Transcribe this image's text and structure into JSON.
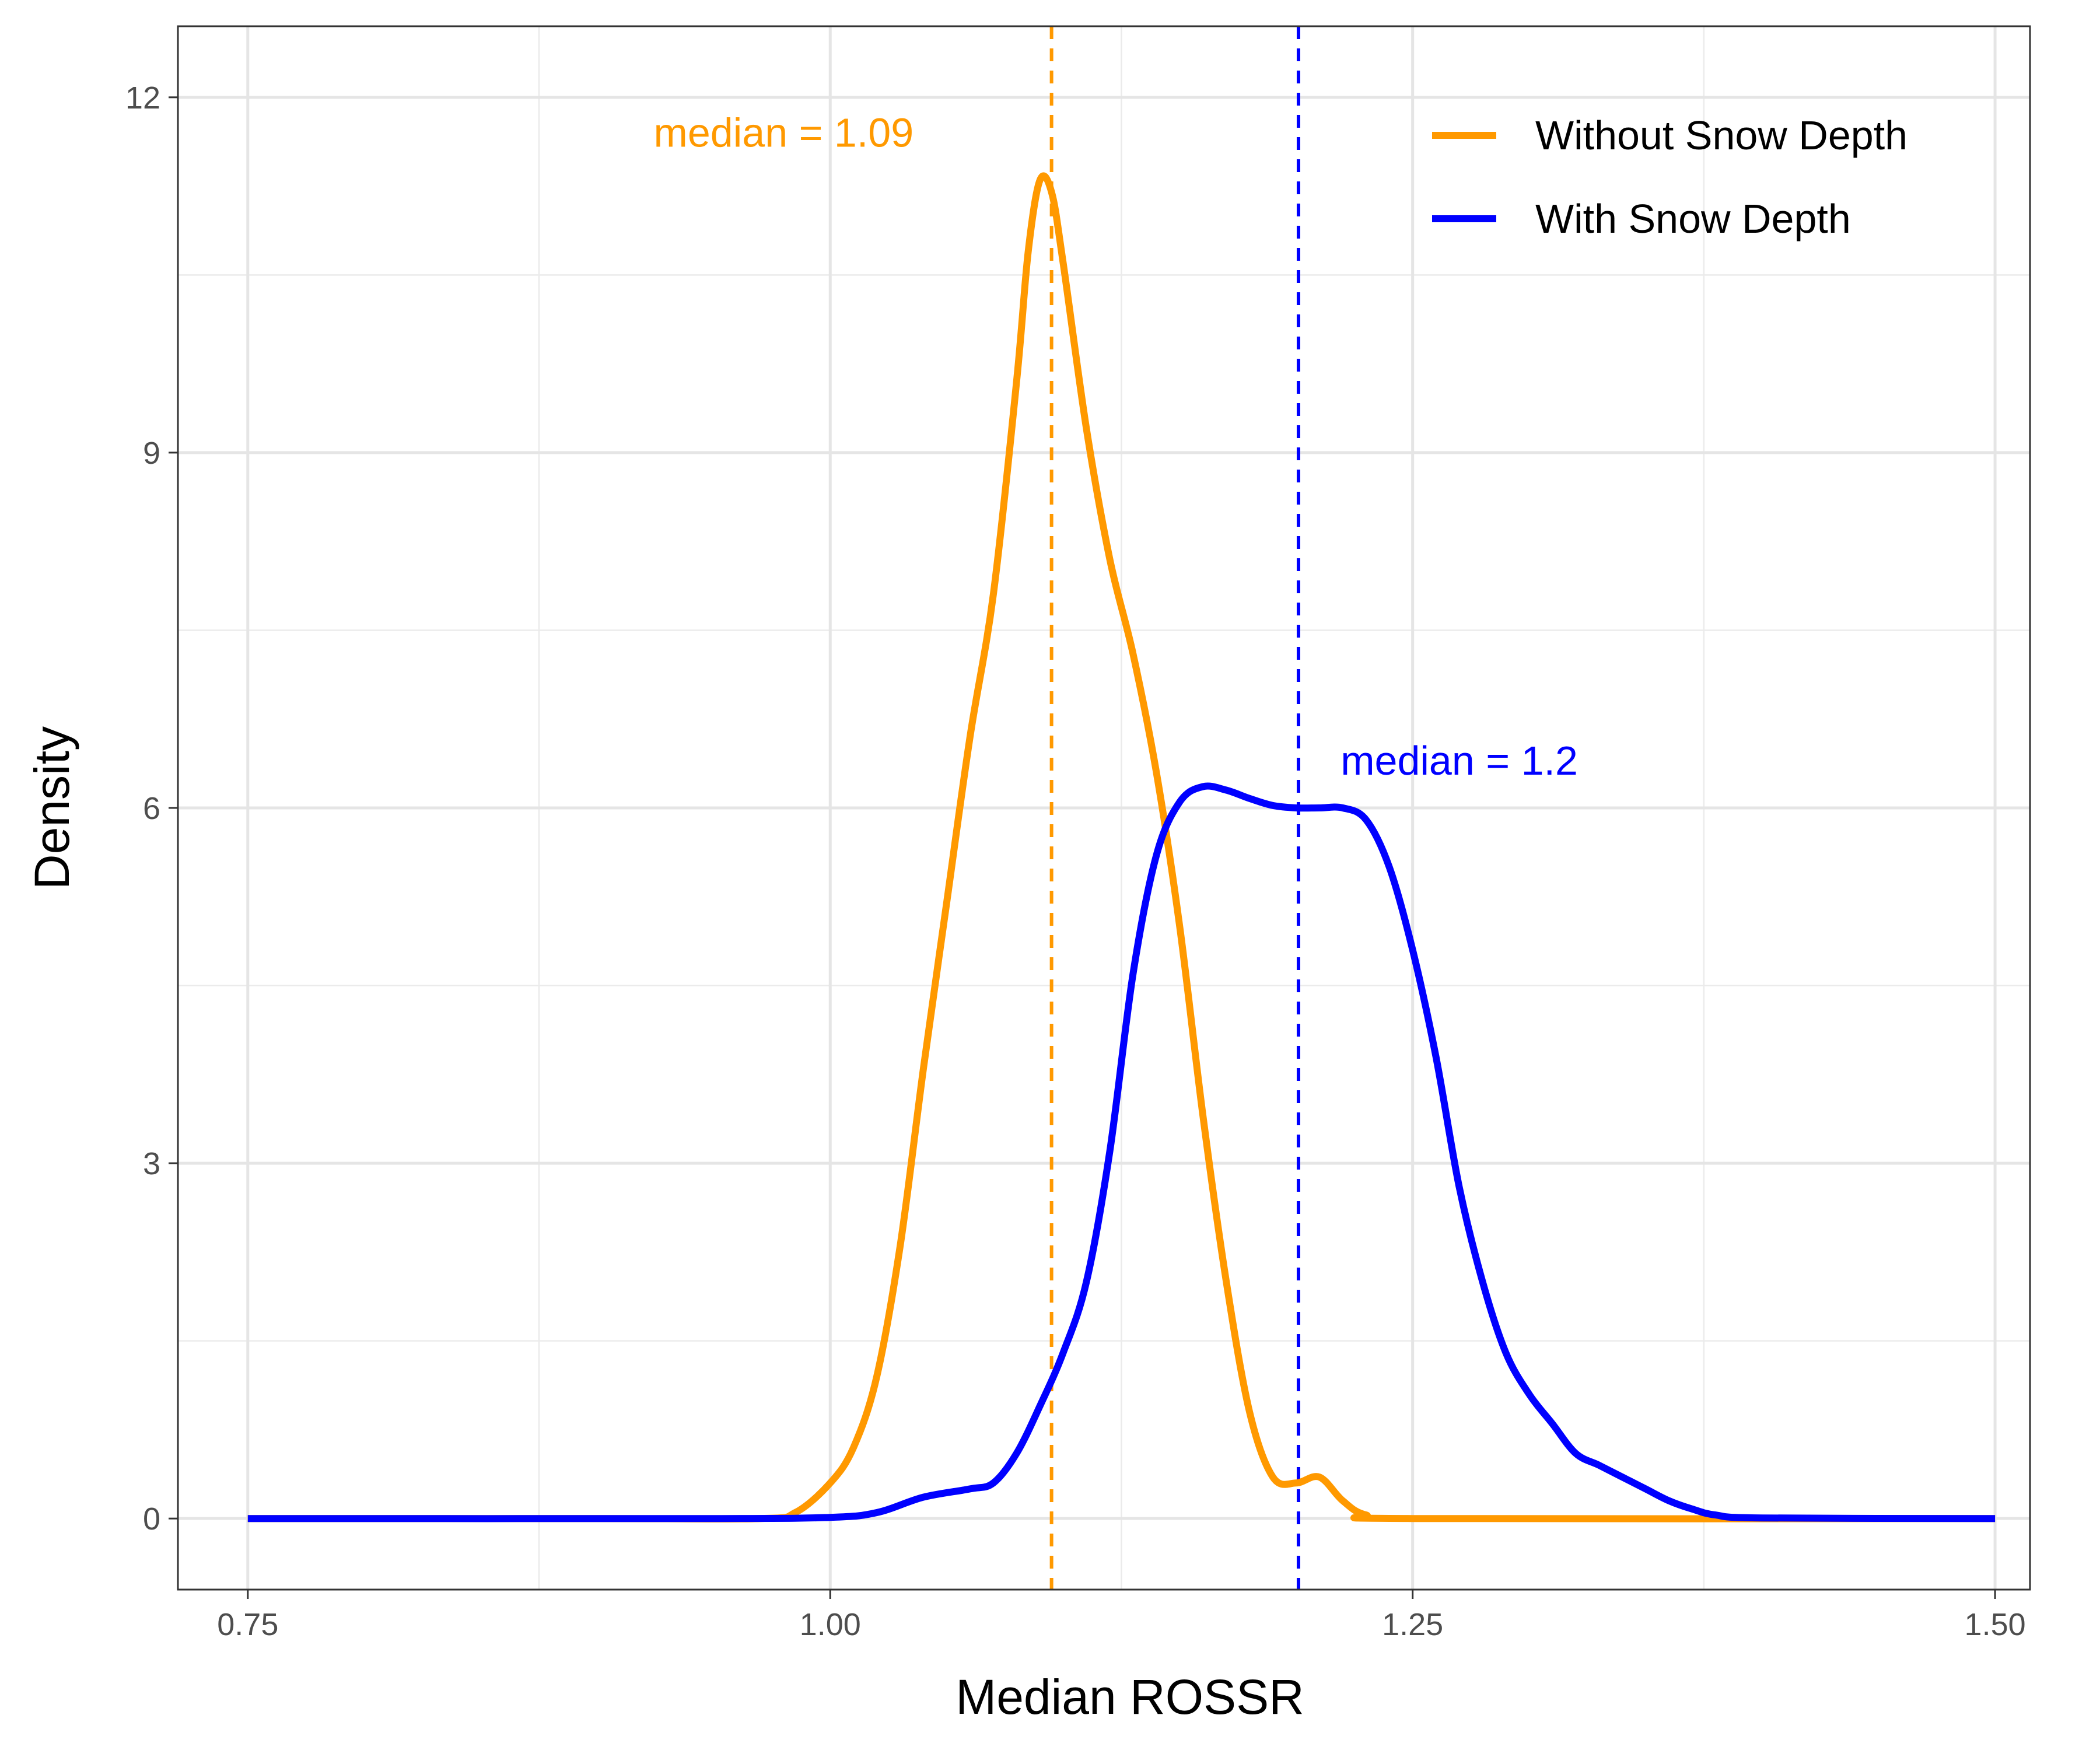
{
  "chart_data": {
    "type": "line",
    "title": "",
    "xlabel": "Median ROSSR",
    "ylabel": "Density",
    "xlim": [
      0.72,
      1.515
    ],
    "ylim": [
      -0.6,
      12.6
    ],
    "x_ticks": [
      0.75,
      1.0,
      1.25,
      1.5
    ],
    "x_tick_labels": [
      "0.75",
      "1.00",
      "1.25",
      "1.50"
    ],
    "y_ticks": [
      0,
      3,
      6,
      9,
      12
    ],
    "y_tick_labels": [
      "0",
      "3",
      "6",
      "9",
      "12"
    ],
    "grid": true,
    "legend_position": "top-right",
    "series": [
      {
        "name": "Without Snow Depth",
        "color": "#FF9900",
        "points": [
          [
            0.75,
            0
          ],
          [
            0.9,
            0
          ],
          [
            0.97,
            0
          ],
          [
            0.985,
            0.05
          ],
          [
            1.0,
            0.3
          ],
          [
            1.01,
            0.6
          ],
          [
            1.02,
            1.2
          ],
          [
            1.03,
            2.3
          ],
          [
            1.04,
            3.8
          ],
          [
            1.05,
            5.2
          ],
          [
            1.06,
            6.6
          ],
          [
            1.07,
            7.8
          ],
          [
            1.08,
            9.6
          ],
          [
            1.085,
            10.7
          ],
          [
            1.09,
            11.3
          ],
          [
            1.095,
            11.2
          ],
          [
            1.1,
            10.6
          ],
          [
            1.11,
            9.2
          ],
          [
            1.12,
            8.1
          ],
          [
            1.13,
            7.3
          ],
          [
            1.14,
            6.3
          ],
          [
            1.15,
            5.0
          ],
          [
            1.16,
            3.4
          ],
          [
            1.17,
            2.0
          ],
          [
            1.18,
            0.9
          ],
          [
            1.19,
            0.35
          ],
          [
            1.2,
            0.3
          ],
          [
            1.21,
            0.35
          ],
          [
            1.22,
            0.15
          ],
          [
            1.23,
            0.03
          ],
          [
            1.25,
            0
          ],
          [
            1.5,
            0
          ]
        ]
      },
      {
        "name": "With Snow Depth",
        "color": "#0000FF",
        "points": [
          [
            0.75,
            0
          ],
          [
            0.95,
            0
          ],
          [
            1.0,
            0.01
          ],
          [
            1.02,
            0.05
          ],
          [
            1.04,
            0.18
          ],
          [
            1.06,
            0.25
          ],
          [
            1.07,
            0.3
          ],
          [
            1.08,
            0.55
          ],
          [
            1.09,
            0.95
          ],
          [
            1.1,
            1.4
          ],
          [
            1.11,
            2.0
          ],
          [
            1.12,
            3.1
          ],
          [
            1.13,
            4.6
          ],
          [
            1.14,
            5.6
          ],
          [
            1.15,
            6.05
          ],
          [
            1.16,
            6.18
          ],
          [
            1.17,
            6.15
          ],
          [
            1.18,
            6.08
          ],
          [
            1.19,
            6.02
          ],
          [
            1.2,
            6.0
          ],
          [
            1.21,
            6.0
          ],
          [
            1.22,
            6.0
          ],
          [
            1.23,
            5.9
          ],
          [
            1.24,
            5.5
          ],
          [
            1.25,
            4.8
          ],
          [
            1.26,
            3.9
          ],
          [
            1.27,
            2.8
          ],
          [
            1.28,
            2.0
          ],
          [
            1.29,
            1.4
          ],
          [
            1.3,
            1.05
          ],
          [
            1.31,
            0.8
          ],
          [
            1.32,
            0.55
          ],
          [
            1.33,
            0.45
          ],
          [
            1.34,
            0.35
          ],
          [
            1.35,
            0.25
          ],
          [
            1.36,
            0.15
          ],
          [
            1.37,
            0.08
          ],
          [
            1.38,
            0.03
          ],
          [
            1.4,
            0.005
          ],
          [
            1.5,
            0
          ]
        ]
      }
    ],
    "vlines": [
      {
        "x": 1.095,
        "color": "#FF9900",
        "style": "dashed"
      },
      {
        "x": 1.201,
        "color": "#0000FF",
        "style": "dashed"
      }
    ],
    "annotations": [
      {
        "text": "median = 1.09",
        "x": 0.98,
        "y": 11.7,
        "color": "#FF9900",
        "anchor": "middle"
      },
      {
        "text": "median = 1.2",
        "x": 1.27,
        "y": 6.4,
        "color": "#0000FF",
        "anchor": "middle"
      }
    ]
  }
}
